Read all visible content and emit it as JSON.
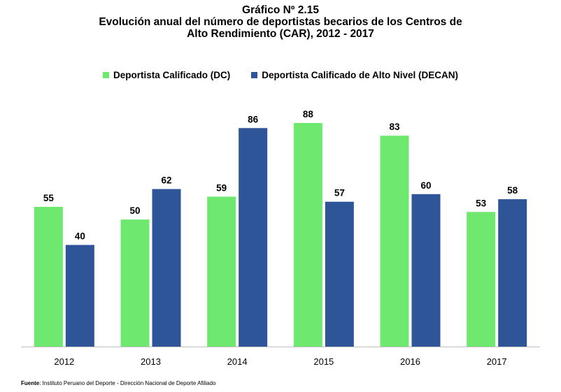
{
  "title_lines": [
    "Gráfico Nº 2.15",
    "Evolución anual del número de deportistas becarios de los Centros de",
    "Alto Rendimiento (CAR), 2012 - 2017"
  ],
  "legend": [
    {
      "label": "Deportista Calificado (DC)",
      "color": "#6EE86F"
    },
    {
      "label": "Deportista Calificado de Alto Nivel (DECAN)",
      "color": "#2E5597"
    }
  ],
  "source": {
    "prefix": "Fuente",
    "text": ": Instituto Peruano del Deporte - Dirección Nacional de Deporte Afiliado"
  },
  "chart_data": {
    "type": "bar",
    "title": "Evolución anual del número de deportistas becarios de los Centros de Alto Rendimiento (CAR), 2012 - 2017",
    "categories": [
      "2012",
      "2013",
      "2014",
      "2015",
      "2016",
      "2017"
    ],
    "series": [
      {
        "name": "Deportista Calificado (DC)",
        "color": "#6EE86F",
        "values": [
          55,
          50,
          59,
          88,
          83,
          53
        ]
      },
      {
        "name": "Deportista Calificado de Alto Nivel (DECAN)",
        "color": "#2E5597",
        "values": [
          40,
          62,
          86,
          57,
          60,
          58
        ]
      }
    ],
    "ylim": [
      0,
      88
    ],
    "grid": false,
    "legend_position": "top",
    "data_labels": true
  }
}
